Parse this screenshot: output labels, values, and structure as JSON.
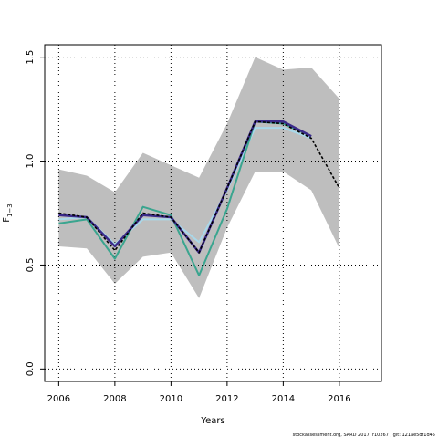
{
  "chart_data": {
    "type": "line",
    "title": "",
    "xlabel": "Years",
    "ylabel_main": "F",
    "ylabel_sub": "1−3",
    "xlim": [
      2005.5,
      2017.5
    ],
    "ylim": [
      -0.06,
      1.56
    ],
    "x_ticks": [
      2006,
      2008,
      2010,
      2012,
      2014,
      2016
    ],
    "x_tick_labels": [
      "2006",
      "2008",
      "2010",
      "2012",
      "2014",
      "2016"
    ],
    "y_ticks": [
      0.0,
      0.5,
      1.0,
      1.5
    ],
    "y_tick_labels": [
      "0.0",
      "0.5",
      "1.0",
      "1.5"
    ],
    "grid": "dotted",
    "legend": "none",
    "x": [
      2006,
      2007,
      2008,
      2009,
      2010,
      2011,
      2012,
      2013,
      2014,
      2015,
      2016
    ],
    "band": {
      "color": "#bebebe",
      "upper": [
        0.96,
        0.93,
        0.85,
        1.04,
        0.98,
        0.92,
        1.18,
        1.5,
        1.44,
        1.45,
        1.3
      ],
      "lower": [
        0.59,
        0.58,
        0.41,
        0.54,
        0.56,
        0.34,
        0.68,
        0.95,
        0.95,
        0.86,
        0.58
      ]
    },
    "series": [
      {
        "color": "#a8d8ea",
        "width": 2,
        "dash": "",
        "values": [
          0.72,
          0.73,
          0.6,
          0.72,
          0.72,
          0.61,
          0.86,
          1.16,
          1.16,
          1.11,
          null
        ]
      },
      {
        "color": "#3aa58f",
        "width": 2,
        "dash": "",
        "values": [
          0.7,
          0.72,
          0.53,
          0.78,
          0.74,
          0.45,
          0.77,
          1.19,
          1.18,
          1.12,
          null
        ]
      },
      {
        "color": "#3b2a8a",
        "width": 2.5,
        "dash": "",
        "values": [
          0.74,
          0.73,
          0.59,
          0.74,
          0.73,
          0.56,
          0.87,
          1.19,
          1.19,
          1.12,
          null
        ]
      },
      {
        "color": "#000000",
        "width": 1.6,
        "dash": "3,2",
        "values": [
          0.75,
          0.73,
          0.57,
          0.75,
          0.73,
          0.56,
          0.87,
          1.19,
          1.18,
          1.11,
          0.87
        ]
      }
    ]
  },
  "footer": "stockassessment.org, SARD 2017, r10267 , git: 121ae5df1d45"
}
